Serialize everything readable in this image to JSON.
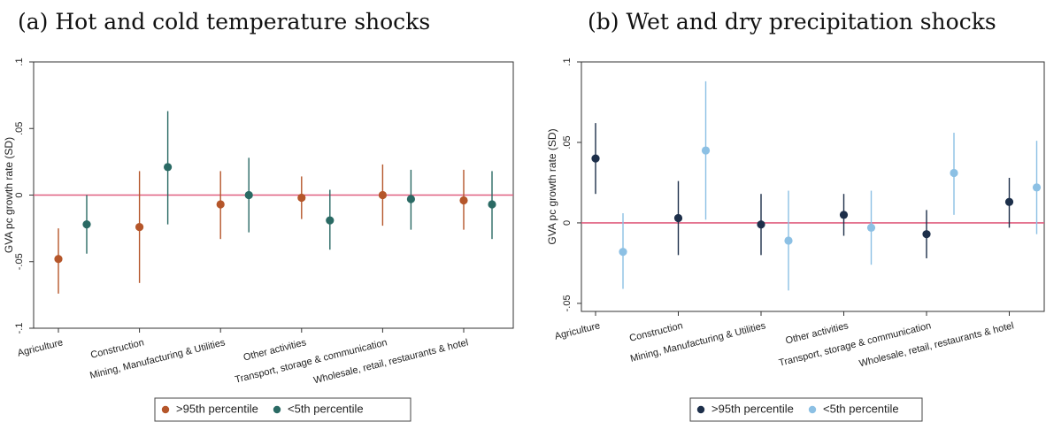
{
  "chart_data": [
    {
      "type": "scatter",
      "panel_title": "(a) Hot and cold temperature shocks",
      "ylabel": "GVA pc growth rate (SD)",
      "ylim": [
        -0.1,
        0.1
      ],
      "yticks": [
        -0.1,
        -0.05,
        0,
        0.05,
        0.1
      ],
      "ytick_labels": [
        "-.1",
        "-.05",
        "0",
        ".05",
        ".1"
      ],
      "reference_line": 0,
      "reference_line_color": "#e06080",
      "categories": [
        "Agriculture",
        "Construction",
        "Mining, Manufacturing & Utilities",
        "Other activities",
        "Transport, storage & communication",
        "Wholesale, retail, restaurants & hotel"
      ],
      "series": [
        {
          "name": ">95th percentile",
          "color": "#b5562a",
          "values": [
            -0.048,
            -0.024,
            -0.007,
            -0.002,
            0.0,
            -0.004
          ],
          "ci_low": [
            -0.074,
            -0.066,
            -0.033,
            -0.018,
            -0.023,
            -0.026
          ],
          "ci_high": [
            -0.025,
            0.018,
            0.018,
            0.014,
            0.023,
            0.019
          ]
        },
        {
          "name": "<5th percentile",
          "color": "#2a6a64",
          "values": [
            -0.022,
            0.021,
            0.0,
            -0.019,
            -0.003,
            -0.007
          ],
          "ci_low": [
            -0.044,
            -0.022,
            -0.028,
            -0.041,
            -0.026,
            -0.033
          ],
          "ci_high": [
            0.0,
            0.063,
            0.028,
            0.004,
            0.019,
            0.018
          ]
        }
      ],
      "legend_position": "bottom",
      "grid": false
    },
    {
      "type": "scatter",
      "panel_title": "(b) Wet and dry precipitation shocks",
      "ylabel": "GVA pc growth rate (SD)",
      "ylim": [
        -0.055,
        0.1
      ],
      "yticks": [
        -0.05,
        0,
        0.05,
        0.1
      ],
      "ytick_labels": [
        "-.05",
        "0",
        ".05",
        ".1"
      ],
      "reference_line": 0,
      "reference_line_color": "#e06080",
      "categories": [
        "Agriculture",
        "Construction",
        "Mining, Manufacturing & Utilities",
        "Other activities",
        "Transport, storage & communication",
        "Wholesale, retail, restaurants & hotel"
      ],
      "series": [
        {
          "name": ">95th percentile",
          "color": "#1d2f4a",
          "values": [
            0.04,
            0.003,
            -0.001,
            0.005,
            -0.007,
            0.013
          ],
          "ci_low": [
            0.018,
            -0.02,
            -0.02,
            -0.008,
            -0.022,
            -0.003
          ],
          "ci_high": [
            0.062,
            0.026,
            0.018,
            0.018,
            0.008,
            0.028
          ]
        },
        {
          "name": "<5th percentile",
          "color": "#8cc0e4",
          "values": [
            -0.018,
            0.045,
            -0.011,
            -0.003,
            0.031,
            0.022
          ],
          "ci_low": [
            -0.041,
            0.002,
            -0.042,
            -0.026,
            0.005,
            -0.007
          ],
          "ci_high": [
            0.006,
            0.088,
            0.02,
            0.02,
            0.056,
            0.051
          ]
        }
      ],
      "legend_position": "bottom",
      "grid": false
    }
  ]
}
